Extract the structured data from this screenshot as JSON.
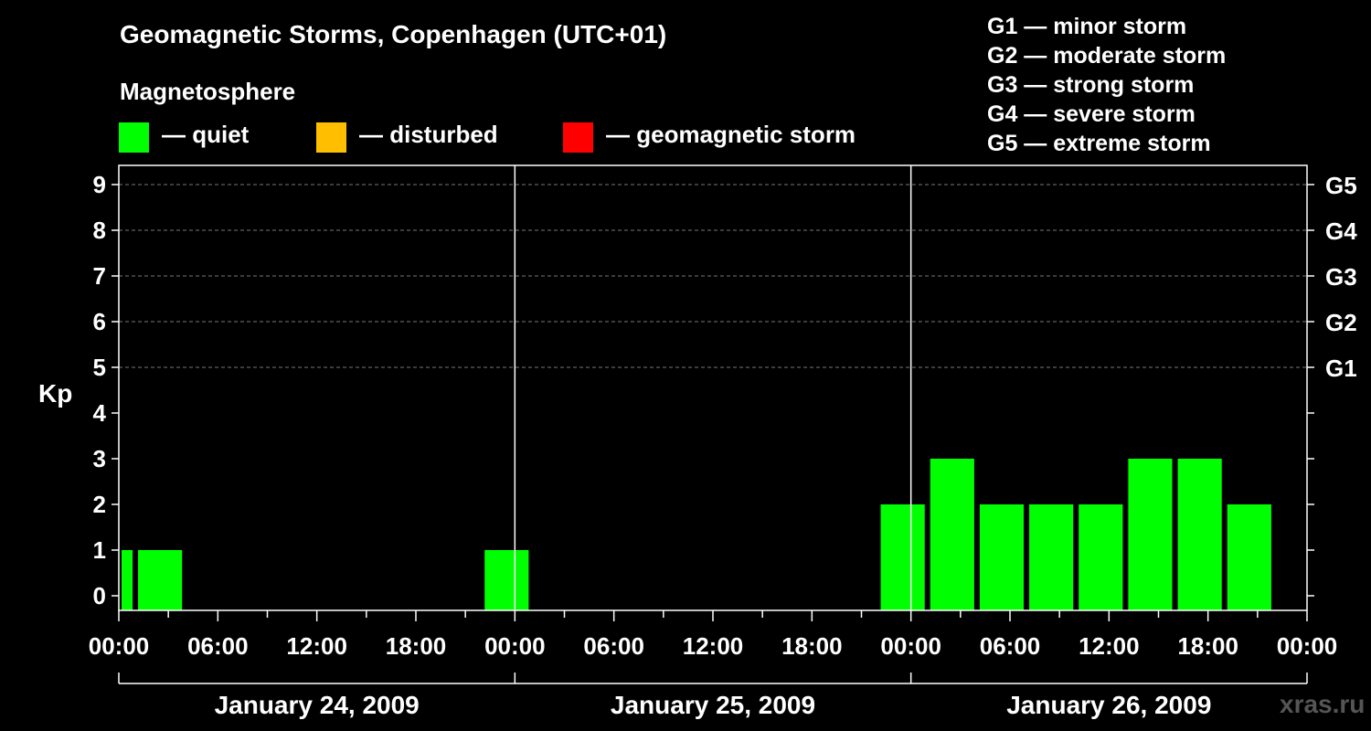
{
  "title": "Geomagnetic Storms, Copenhagen (UTC+01)",
  "magnetosphere": {
    "label": "Magnetosphere",
    "items": [
      {
        "label": "— quiet",
        "color": "#00ff00"
      },
      {
        "label": "— disturbed",
        "color": "#ffbf00"
      },
      {
        "label": "— geomagnetic storm",
        "color": "#ff0000"
      }
    ]
  },
  "storm_scale": [
    "G1 — minor storm",
    "G2 — moderate storm",
    "G3 — strong storm",
    "G4 — severe storm",
    "G5 — extreme storm"
  ],
  "watermark": "xras.ru",
  "chart_data": {
    "type": "bar",
    "title": "Geomagnetic Storms, Copenhagen (UTC+01)",
    "ylabel": "Kp",
    "ylim": [
      0,
      9
    ],
    "y_ticks": [
      "0",
      "1",
      "2",
      "3",
      "4",
      "5",
      "6",
      "7",
      "8",
      "9"
    ],
    "right_ticks": [
      {
        "kp": 5,
        "label": "G1"
      },
      {
        "kp": 6,
        "label": "G2"
      },
      {
        "kp": 7,
        "label": "G3"
      },
      {
        "kp": 8,
        "label": "G4"
      },
      {
        "kp": 9,
        "label": "G5"
      }
    ],
    "x_range_hours": [
      0,
      72
    ],
    "x_ticks": [
      "00:00",
      "06:00",
      "12:00",
      "18:00",
      "00:00",
      "06:00",
      "12:00",
      "18:00",
      "00:00",
      "06:00",
      "12:00",
      "18:00",
      "00:00"
    ],
    "days": [
      "January 24, 2009",
      "January 25, 2009",
      "January 26, 2009"
    ],
    "grid": "dashed at Kp 5-9",
    "bars": [
      {
        "start": 0,
        "end": 1,
        "kp": 1,
        "status": "quiet"
      },
      {
        "start": 1,
        "end": 4,
        "kp": 1,
        "status": "quiet"
      },
      {
        "start": 22,
        "end": 25,
        "kp": 1,
        "status": "quiet"
      },
      {
        "start": 46,
        "end": 49,
        "kp": 2,
        "status": "quiet"
      },
      {
        "start": 49,
        "end": 52,
        "kp": 3,
        "status": "quiet"
      },
      {
        "start": 52,
        "end": 55,
        "kp": 2,
        "status": "quiet"
      },
      {
        "start": 55,
        "end": 58,
        "kp": 2,
        "status": "quiet"
      },
      {
        "start": 58,
        "end": 61,
        "kp": 2,
        "status": "quiet"
      },
      {
        "start": 61,
        "end": 64,
        "kp": 3,
        "status": "quiet"
      },
      {
        "start": 64,
        "end": 67,
        "kp": 3,
        "status": "quiet"
      },
      {
        "start": 67,
        "end": 70,
        "kp": 2,
        "status": "quiet"
      }
    ]
  }
}
